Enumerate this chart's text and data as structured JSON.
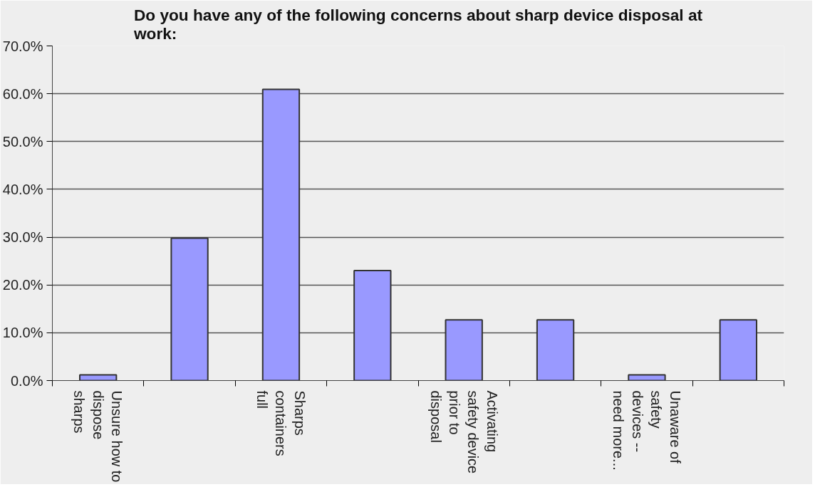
{
  "chart_data": {
    "type": "bar",
    "title": "Do you have any of the following concerns about sharp device disposal at work:",
    "categories": [
      "Unsure how to dispose sharps",
      null,
      "Sharps containers full",
      null,
      "Activating safety device prior to disposal",
      null,
      "Unaware of safety devices -- need more...",
      null
    ],
    "values": [
      1.2,
      29.8,
      60.9,
      23.0,
      12.7,
      12.7,
      1.2,
      12.7
    ],
    "color": "#9999ff",
    "ylim": [
      0,
      70
    ],
    "yticks": [
      {
        "value": 0,
        "label": "0.0%"
      },
      {
        "value": 10,
        "label": "10.0%"
      },
      {
        "value": 20,
        "label": "20.0%"
      },
      {
        "value": 30,
        "label": "30.0%"
      },
      {
        "value": 40,
        "label": "40.0%"
      },
      {
        "value": 50,
        "label": "50.0%"
      },
      {
        "value": 60,
        "label": "60.0%"
      },
      {
        "value": 70,
        "label": "70.0%"
      }
    ],
    "grid": "y"
  }
}
